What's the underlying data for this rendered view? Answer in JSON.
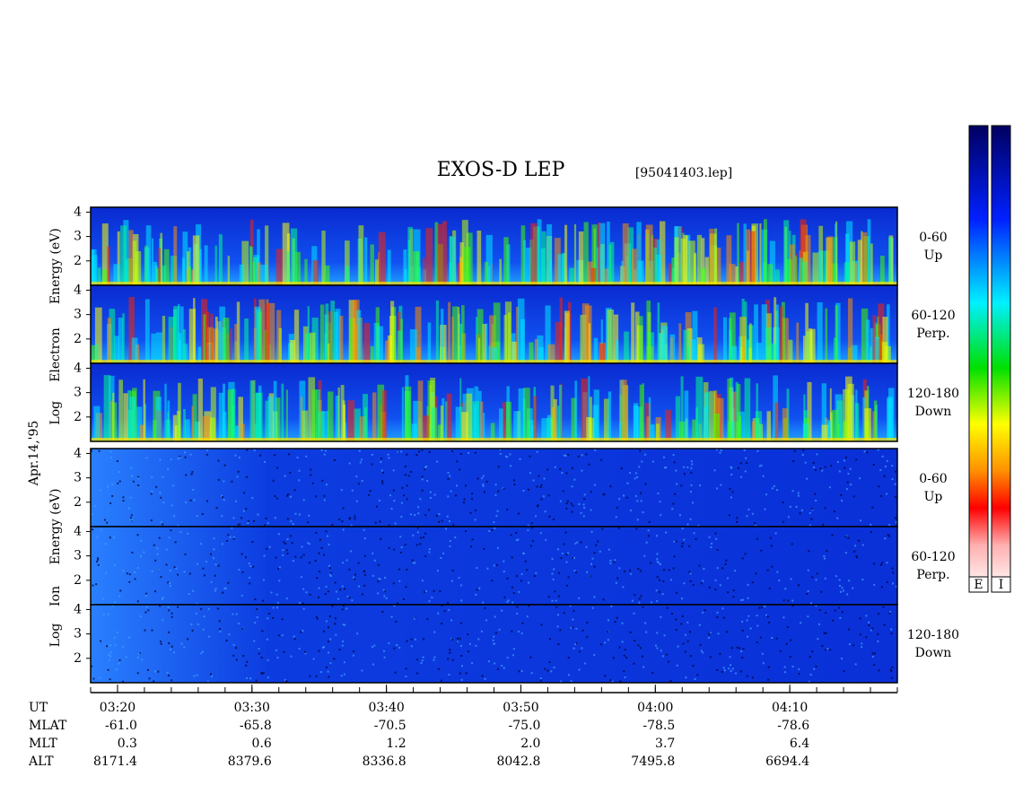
{
  "chart_data": {
    "type": "spectrogram",
    "title": "EXOS-D LEP",
    "subtitle": "[95041403.lep]",
    "date_label": "Apr.14,'95",
    "ylim": [
      1,
      4.2
    ],
    "yticks": [
      2,
      3,
      4
    ],
    "xlim": [
      "03:18",
      "04:18"
    ],
    "xticks": [
      "03:20",
      "03:30",
      "03:40",
      "03:50",
      "04:00",
      "04:10"
    ],
    "x_row_label": "UT",
    "groups": [
      {
        "ylabel": [
          "Log",
          "Electron",
          "Energy (eV)"
        ],
        "panels": [
          {
            "label": [
              "0-60",
              "Up"
            ]
          },
          {
            "label": [
              "60-120",
              "Perp."
            ]
          },
          {
            "label": [
              "120-180",
              "Down"
            ]
          }
        ]
      },
      {
        "ylabel": [
          "Log",
          "Ion",
          "Energy (eV)"
        ],
        "panels": [
          {
            "label": [
              "0-60",
              "Up"
            ]
          },
          {
            "label": [
              "60-120",
              "Perp."
            ]
          },
          {
            "label": [
              "120-180",
              "Down"
            ]
          }
        ]
      }
    ],
    "rows": [
      {
        "name": "MLAT",
        "values": [
          "-61.0",
          "-65.8",
          "-70.5",
          "-75.0",
          "-78.5",
          "-78.6"
        ]
      },
      {
        "name": "MLT",
        "values": [
          "0.3",
          "0.6",
          "1.2",
          "2.0",
          "3.7",
          "6.4"
        ]
      },
      {
        "name": "ALT",
        "values": [
          "8171.4",
          "8379.6",
          "8336.8",
          "8042.8",
          "7495.8",
          "6694.4"
        ]
      }
    ],
    "colorbars": [
      "E",
      "I"
    ]
  }
}
